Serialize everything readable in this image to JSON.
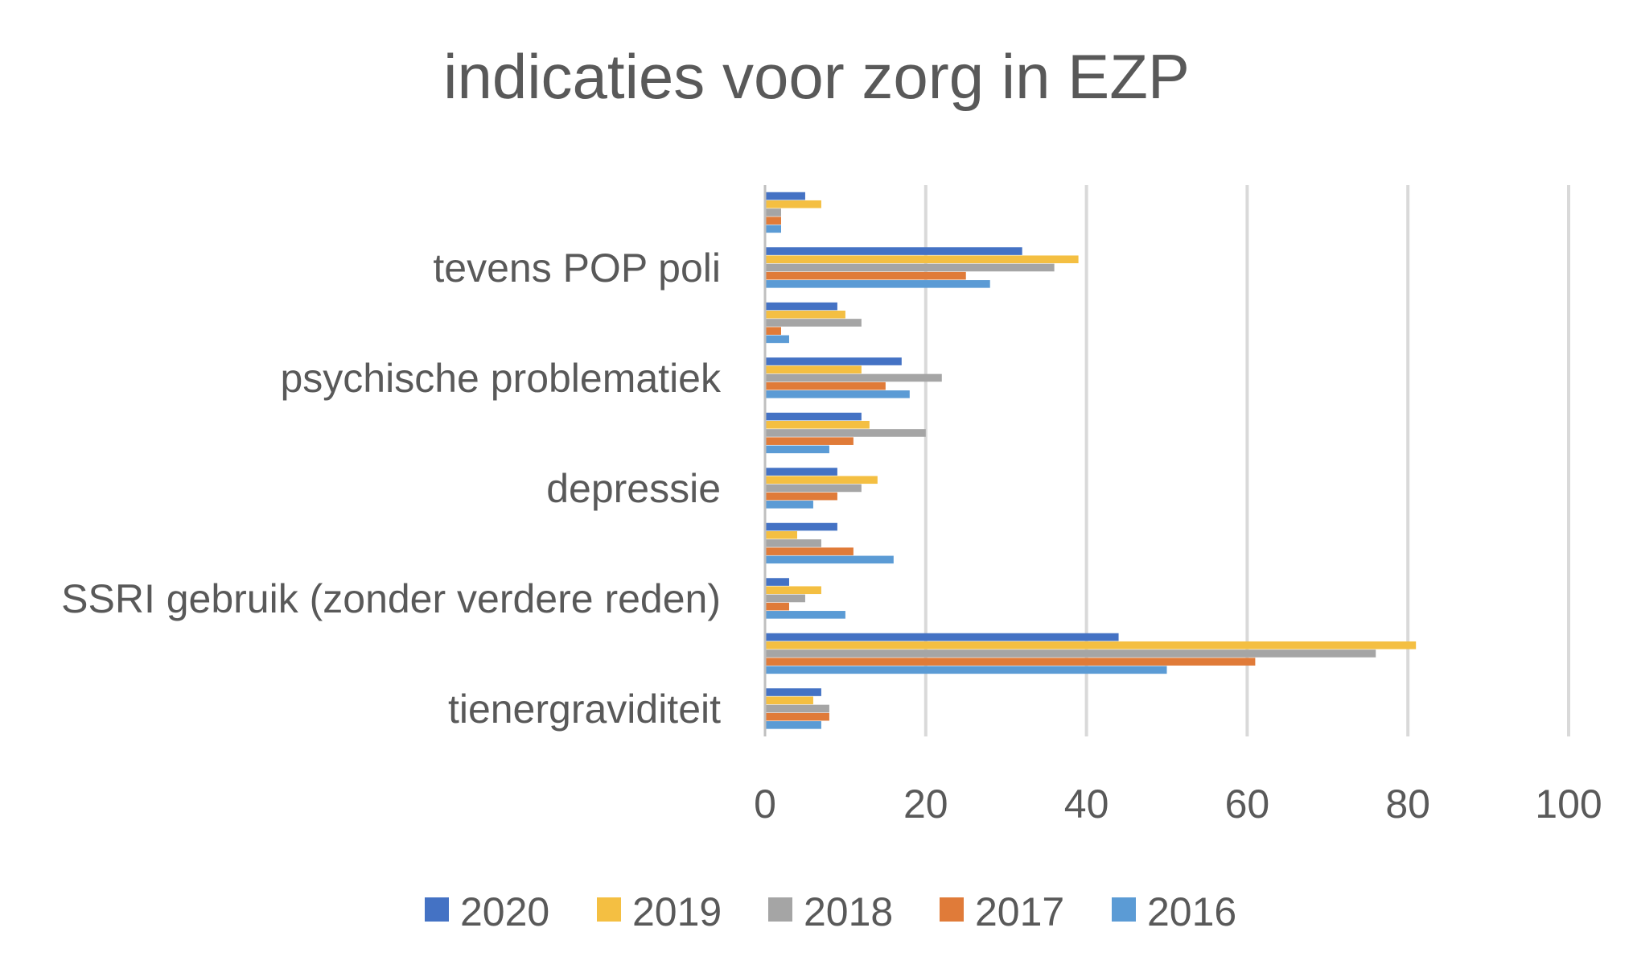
{
  "chart_data": {
    "type": "bar",
    "orientation": "horizontal",
    "title": "indicaties voor zorg in EZP",
    "xlabel": "",
    "ylabel": "",
    "xlim": [
      0,
      100
    ],
    "ticks": [
      "0",
      "20",
      "40",
      "60",
      "80",
      "100"
    ],
    "tick_values": [
      0,
      20,
      40,
      60,
      80,
      100
    ],
    "grid": true,
    "legend_position": "bottom",
    "categories_top_to_bottom": [
      "",
      "tevens POP poli",
      "",
      "psychische problematiek",
      "",
      "depressie",
      "",
      "SSRI gebruik (zonder verdere reden)",
      "",
      "tienergraviditeit"
    ],
    "series": [
      {
        "name": "2020",
        "color": "#4472C4",
        "values": [
          5,
          32,
          9,
          17,
          12,
          9,
          9,
          3,
          44,
          7
        ]
      },
      {
        "name": "2019",
        "color": "#F4BF42",
        "values": [
          7,
          39,
          10,
          12,
          13,
          14,
          4,
          7,
          81,
          6
        ]
      },
      {
        "name": "2018",
        "color": "#A5A5A5",
        "values": [
          2,
          36,
          12,
          22,
          20,
          12,
          7,
          5,
          76,
          8
        ]
      },
      {
        "name": "2017",
        "color": "#E07B39",
        "values": [
          2,
          25,
          2,
          15,
          11,
          9,
          11,
          3,
          61,
          8
        ]
      },
      {
        "name": "2016",
        "color": "#5B9BD5",
        "values": [
          2,
          28,
          3,
          18,
          8,
          6,
          16,
          10,
          50,
          7
        ]
      }
    ],
    "gridline_color": "#D9D9D9",
    "axis_color": "#BFBFBF"
  }
}
